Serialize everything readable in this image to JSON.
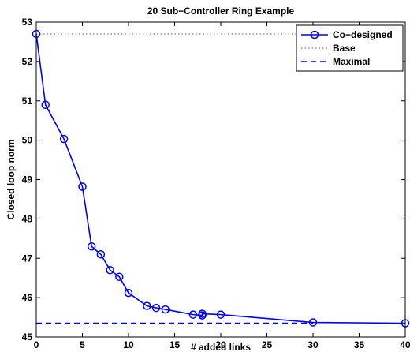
{
  "chart_data": {
    "type": "line",
    "title": "20 Sub−Controller Ring Example",
    "xlabel": "# added links",
    "ylabel": "Closed loop norm",
    "xlim": [
      0,
      40
    ],
    "ylim": [
      45,
      53
    ],
    "xticks": [
      0,
      5,
      10,
      15,
      20,
      25,
      30,
      35,
      40
    ],
    "yticks": [
      45,
      46,
      47,
      48,
      49,
      50,
      51,
      52,
      53
    ],
    "grid": false,
    "legend_position": "top-right",
    "series": [
      {
        "name": "Co−designed",
        "style": "solid-circle-markers",
        "color": "#0000ff",
        "x": [
          0,
          1,
          3,
          5,
          6,
          7,
          8,
          9,
          10,
          12,
          13,
          14,
          17,
          18,
          18,
          20,
          30,
          40
        ],
        "y": [
          52.7,
          50.9,
          50.03,
          48.82,
          47.3,
          47.1,
          46.7,
          46.53,
          46.12,
          45.79,
          45.74,
          45.7,
          45.57,
          45.55,
          45.59,
          45.57,
          45.37,
          45.35
        ]
      },
      {
        "name": "Base",
        "style": "dotted",
        "color": "#666666",
        "x": [
          0,
          40
        ],
        "y": [
          52.7,
          52.7
        ]
      },
      {
        "name": "Maximal",
        "style": "dashed",
        "color": "#0000ff",
        "x": [
          0,
          30
        ],
        "y": [
          45.35,
          45.35
        ]
      }
    ]
  }
}
